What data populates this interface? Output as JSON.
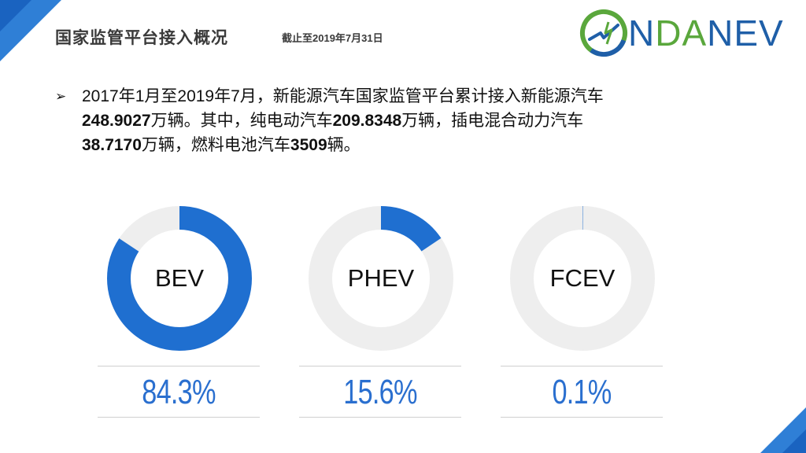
{
  "header": {
    "title": "国家监管平台接入概况",
    "subtitle": "截止至2019年7月31日",
    "logo": {
      "part1": "N",
      "part2": "DA",
      "part3": "NEV"
    }
  },
  "bullet": {
    "arrow": "➢",
    "line1": "2017年1月至2019年7月，新能源汽车国家监管平台累计接入新能源汽车",
    "total_value": "248.9027",
    "seg1": "万辆。其中，纯电动汽车",
    "bev_value": "209.8348",
    "seg2": "万辆，插电混合动力汽车",
    "phev_value": "38.7170",
    "seg3": "万辆，燃料电池汽车",
    "fcev_value": "3509",
    "seg4": "辆。"
  },
  "chart_data": {
    "type": "pie",
    "categories": [
      "BEV",
      "PHEV",
      "FCEV"
    ],
    "values": [
      84.3,
      15.6,
      0.1
    ],
    "labels": [
      "84.3%",
      "15.6%",
      "0.1%"
    ],
    "colors": {
      "fill": "#1f6fd0",
      "track": "#eeeeee",
      "label": "#2a6fcf"
    }
  }
}
